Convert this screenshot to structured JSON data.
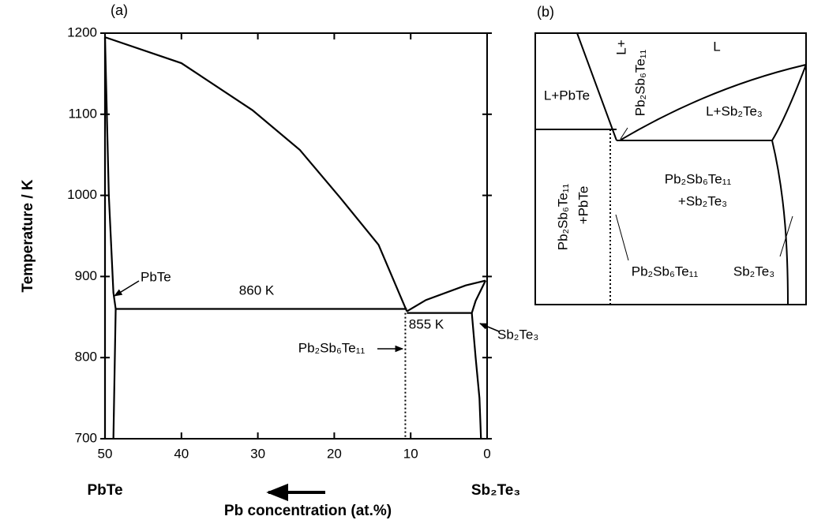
{
  "chart_data": {
    "type": "line",
    "title": "(a)",
    "ylabel": "Temperature / K",
    "xlabel": "Pb concentration (at.%)",
    "xlim": [
      50,
      0
    ],
    "ylim": [
      700,
      1200
    ],
    "xticks": [
      50,
      40,
      30,
      20,
      10,
      0
    ],
    "yticks": [
      700,
      800,
      900,
      1000,
      1100,
      1200
    ],
    "color": "#000000",
    "series": [
      {
        "x": [
          50,
          50
        ],
        "values": [
          1195,
          700
        ]
      },
      {
        "x": [
          50,
          49.5,
          48.9,
          48.6,
          48.9
        ],
        "values": [
          1195,
          1000,
          880,
          860,
          700
        ]
      },
      {
        "x": [
          50,
          40,
          30.7,
          24.5,
          19.3,
          14.2,
          10.5
        ],
        "values": [
          1195,
          1163,
          1105,
          1056,
          998,
          939,
          857
        ]
      },
      {
        "x": [
          48.6,
          10.5
        ],
        "values": [
          860,
          860
        ]
      },
      {
        "x": [
          10.5,
          8,
          2.8,
          0.2
        ],
        "values": [
          857,
          871,
          889,
          895
        ]
      },
      {
        "x": [
          10.5,
          2
        ],
        "values": [
          855,
          855
        ]
      },
      {
        "x": [
          0.2,
          1.5,
          2,
          1.5,
          1,
          0.8
        ],
        "values": [
          895,
          870,
          855,
          800,
          750,
          700
        ]
      },
      {
        "x": [
          10.7,
          10.7
        ],
        "values": [
          855,
          700
        ],
        "style": "dotted"
      }
    ],
    "annotations": [
      "PbTe",
      "860 K",
      "855 K",
      "Pb₂Sb₆Te₁₁",
      "Sb₂Te₃"
    ],
    "end_labels": [
      "PbTe",
      "Sb₂Te₃"
    ]
  },
  "panel_b": {
    "title": "(b)",
    "labels": [
      "L",
      "L+",
      "Pb₂Sb₆Te₁₁",
      "L+PbTe",
      "L+Sb₂Te₃",
      "Pb₂Sb₆Te₁₁",
      "+Sb₂Te₃",
      "Pb₂Sb₆Te₁₁",
      "+PbTe",
      "Pb₂Sb₆Te₁₁",
      "Sb₂Te₃"
    ]
  }
}
